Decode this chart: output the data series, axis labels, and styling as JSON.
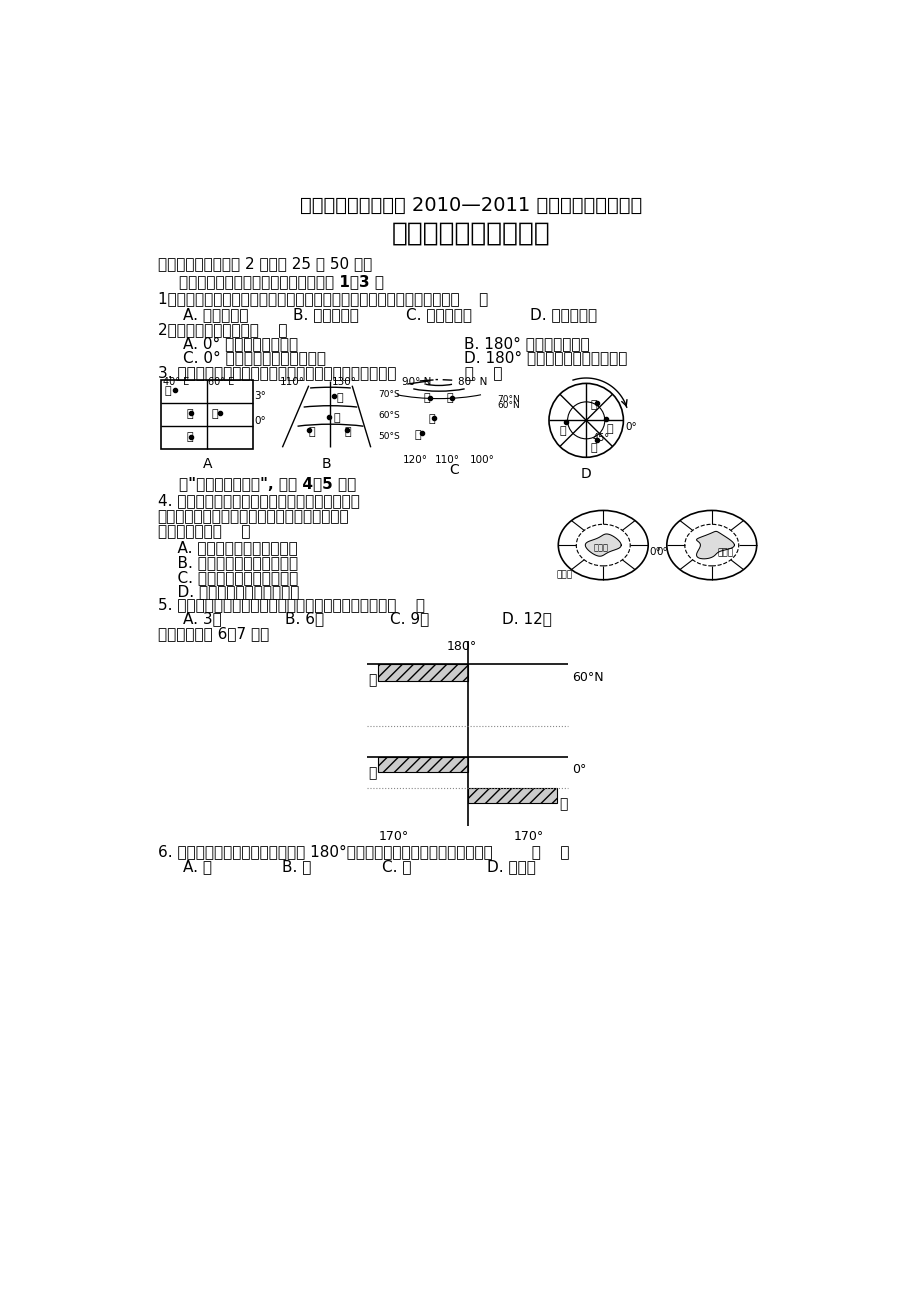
{
  "title1": "昆明三中、滇池中学 2010—2011 学年上学期期中考试",
  "title2": "高二地理试卷（文科）",
  "bg_color": "#ffffff",
  "section1": "一、选择题（每小题 2 分，共 25 题 50 分）",
  "subsection1": "    分析判断下列有关经纬线的说法，完成 1～3 题",
  "q1": "1、在地图上判断方向的方法有多种，其中纬线和经线分别指示的方向是（    ）",
  "q1_a": "A. 东西和南北",
  "q1_b": "B. 南北和东西",
  "q1_c": "C. 东北和西南",
  "q1_d": "D. 西南和东北",
  "q2": "2、下列说法正确的是（    ）",
  "q2_a": "A. 0° 经线以西是东经度",
  "q2_b": "B. 180° 经线东是东经度",
  "q2_c": "C. 0° 纬线是南北半球的分界线",
  "q2_d": "D. 180° 经线是东西半球的分界线",
  "q3": "3. 下列四幅图中，甲地在乙地西北、丙地在丁地东南的是              （    ）",
  "subsection2": "    读\"两极地区示意图\", 回答 4～5 题。",
  "q4_line1": "4. 我国一艘科学考察船从长城站附近海域出发，",
  "q4_line2": "沿地球的自转方向绕南极洲航行一周，经过大洋",
  "q4_line3": "的先后顺序是（    ）",
  "q4_a": "    A. 大西洋、印度洋、太平洋",
  "q4_b": "    B. 太平洋、大西洋、印度洋",
  "q4_c": "    C. 大西洋、太平洋、印度洋",
  "q4_d": "    D. 太平洋、印度洋、大西洋",
  "q5": "5. 我国某科学考察队选择去长城站进行科考的最佳时间（    ）",
  "q5_a": "A. 3月",
  "q5_b": "B. 6月",
  "q5_c": "C. 9月",
  "q5_d": "D. 12月",
  "subsection3": "读下图，回答 6～7 题。",
  "q6": "6. 甲、乙、丙三艘船同时出发驶向 180°经线，而且同时到达，速度最快的是        （    ）",
  "q6_a": "A. 甲",
  "q6_b": "B. 乙",
  "q6_c": "C. 丙",
  "q6_d": "D. 乙和丙"
}
